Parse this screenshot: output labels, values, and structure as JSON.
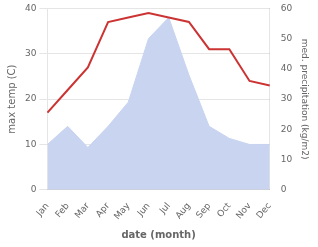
{
  "chart_data": {
    "type": "line",
    "categories": [
      "Jan",
      "Feb",
      "Mar",
      "Apr",
      "May",
      "Jun",
      "Jul",
      "Aug",
      "Sep",
      "Oct",
      "Nov",
      "Dec"
    ],
    "series": [
      {
        "type": "area",
        "color": "#c8d4f0",
        "axis": "y2",
        "values": [
          15,
          21,
          14,
          21,
          29,
          50,
          57,
          38,
          21,
          17,
          15,
          15
        ]
      },
      {
        "type": "line",
        "color": "#cc3333",
        "values": [
          17,
          22,
          27,
          37,
          38,
          39,
          38,
          37,
          31,
          31,
          24,
          23
        ]
      }
    ],
    "xlabel": "date (month)",
    "ylabel": "max temp (C)",
    "y2label": "med. precipitation (kg/m2)",
    "ylim": [
      0,
      40
    ],
    "yticks": [
      0,
      10,
      20,
      30,
      40
    ],
    "y2lim": [
      0,
      60
    ],
    "y2ticks": [
      0,
      10,
      20,
      30,
      40,
      50,
      60
    ],
    "grid": true
  }
}
